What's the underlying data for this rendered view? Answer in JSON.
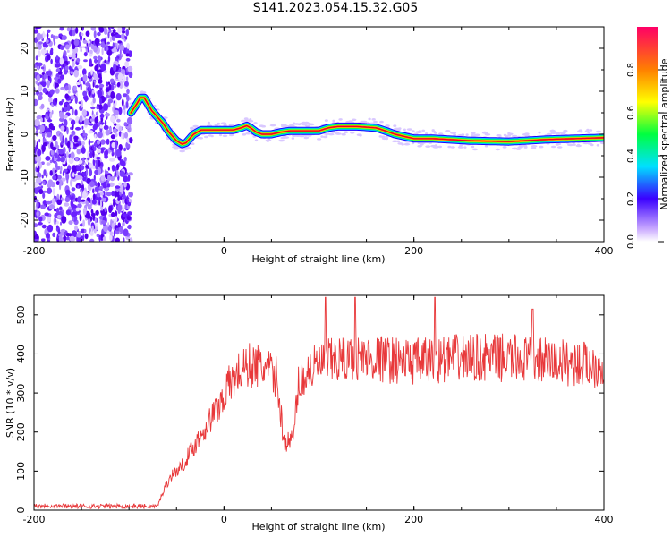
{
  "title": "S141.2023.054.15.32.G05",
  "chart_data": [
    {
      "type": "heatmap",
      "xlabel": "Height of straight line (km)",
      "ylabel": "Frequency (Hz)",
      "xlim": [
        -200,
        400
      ],
      "ylim": [
        -25,
        25
      ],
      "x_ticks": [
        -200,
        0,
        200,
        400
      ],
      "y_ticks": [
        -20,
        -10,
        0,
        10,
        20
      ],
      "grid": false,
      "colorbar": {
        "label": "Normalized spectral amplitude",
        "range": [
          0,
          1
        ],
        "ticks": [
          0.0,
          0.2,
          0.4,
          0.6,
          0.8
        ]
      },
      "noise_region": {
        "x_from": -200,
        "x_to": -98
      },
      "signal_ridge": {
        "x": [
          -98,
          -92,
          -88,
          -84,
          -80,
          -76,
          -70,
          -64,
          -58,
          -50,
          -44,
          -40,
          -32,
          -24,
          -10,
          0,
          10,
          18,
          24,
          28,
          34,
          40,
          50,
          60,
          70,
          80,
          100,
          110,
          120,
          140,
          160,
          170,
          180,
          190,
          200,
          220,
          260,
          300,
          340,
          370,
          400
        ],
        "frequency": [
          5,
          7,
          8.5,
          8.5,
          7,
          5.5,
          4,
          2.5,
          0.5,
          -1.5,
          -2.3,
          -2,
          0,
          1,
          1,
          1,
          1,
          1.5,
          2,
          1.5,
          0.5,
          0,
          0,
          0.5,
          0.8,
          0.8,
          0.8,
          1.5,
          1.8,
          1.8,
          1.5,
          0.8,
          0,
          -0.5,
          -1,
          -1,
          -1.5,
          -1.7,
          -1.2,
          -1,
          -0.8
        ]
      }
    },
    {
      "type": "line",
      "xlabel": "Height of straight line (km)",
      "ylabel": "SNR (10 * v/v)",
      "xlim": [
        -200,
        400
      ],
      "ylim": [
        0,
        550
      ],
      "x_ticks": [
        -200,
        0,
        200,
        400
      ],
      "y_ticks": [
        0,
        100,
        200,
        300,
        400,
        500
      ],
      "grid": false,
      "color": "#e8383a",
      "trend": {
        "x": [
          -200,
          -150,
          -100,
          -70,
          -62,
          -55,
          -45,
          -35,
          -25,
          -15,
          -5,
          5,
          15,
          25,
          35,
          45,
          55,
          60,
          62,
          68,
          73,
          78,
          90,
          110,
          130,
          150,
          200,
          250,
          300,
          350,
          400
        ],
        "snr": [
          12,
          10,
          10,
          10,
          60,
          90,
          110,
          150,
          190,
          230,
          270,
          320,
          350,
          370,
          370,
          360,
          340,
          250,
          180,
          175,
          180,
          320,
          360,
          380,
          390,
          390,
          380,
          390,
          390,
          380,
          370
        ]
      },
      "spikes": {
        "x": [
          107,
          138,
          222,
          325
        ],
        "snr": [
          545,
          545,
          545,
          515
        ]
      }
    }
  ]
}
